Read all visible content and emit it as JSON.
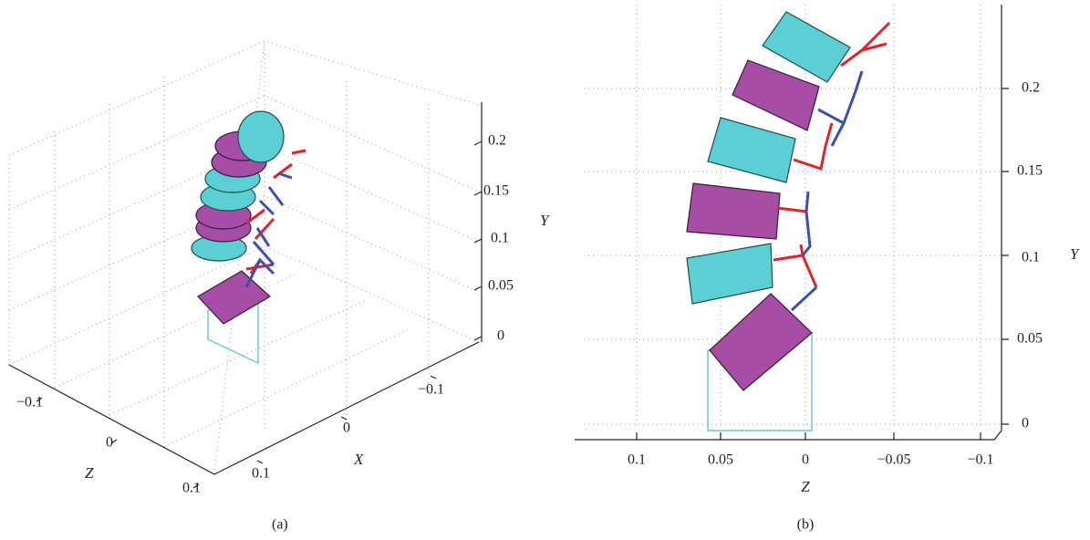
{
  "panels": [
    {
      "caption": "(a)",
      "y_axis": {
        "label": "Y",
        "ticks": [
          "0",
          "0.05",
          "0.1",
          "0.15",
          "0.2"
        ]
      },
      "x_axis": {
        "label": "X",
        "ticks": [
          "−0.1",
          "0",
          "0.1"
        ]
      },
      "z_axis": {
        "label": "Z",
        "ticks": [
          "−0.1",
          "0",
          "0.1"
        ]
      }
    },
    {
      "caption": "(b)",
      "y_axis": {
        "label": "Y",
        "ticks": [
          "0",
          "0.05",
          "0.1",
          "0.15",
          "0.2"
        ]
      },
      "z_axis": {
        "label": "Z",
        "ticks": [
          "0.1",
          "0.05",
          "0",
          "−0.05",
          "−0.1"
        ]
      }
    }
  ]
}
